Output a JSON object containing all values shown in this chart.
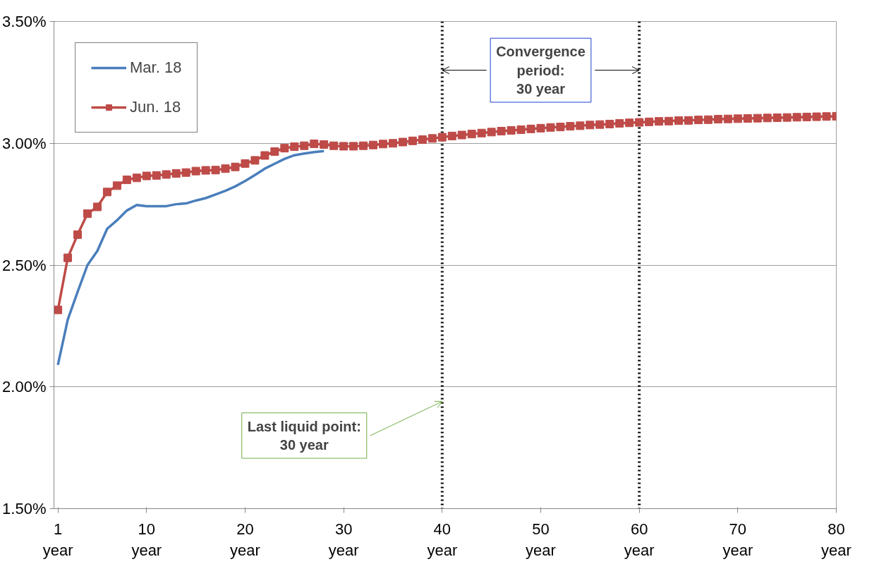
{
  "chart_data": {
    "type": "line",
    "x": [
      1,
      2,
      3,
      4,
      5,
      6,
      7,
      8,
      9,
      10,
      11,
      12,
      13,
      14,
      15,
      16,
      17,
      18,
      19,
      20,
      21,
      22,
      23,
      24,
      25,
      26,
      27,
      28,
      29,
      30,
      31,
      32,
      33,
      34,
      35,
      36,
      37,
      38,
      39,
      40,
      41,
      42,
      43,
      44,
      45,
      46,
      47,
      48,
      49,
      50,
      51,
      52,
      53,
      54,
      55,
      56,
      57,
      58,
      59,
      60,
      61,
      62,
      63,
      64,
      65,
      66,
      67,
      68,
      69,
      70,
      71,
      72,
      73,
      74,
      75,
      76,
      77,
      78,
      79,
      80
    ],
    "series": [
      {
        "name": "Mar. 18",
        "color": "#4a7ebb",
        "marker": "none",
        "values": [
          2.09,
          2.276,
          2.39,
          2.5,
          2.558,
          2.649,
          2.684,
          2.724,
          2.747,
          2.742,
          2.742,
          2.742,
          2.75,
          2.753,
          2.765,
          2.775,
          2.79,
          2.805,
          2.823,
          2.845,
          2.87,
          2.896,
          2.916,
          2.936,
          2.951,
          2.958,
          2.964,
          2.968,
          null,
          null,
          null,
          null,
          null,
          null,
          null,
          null,
          null,
          null,
          null,
          null,
          null,
          null,
          null,
          null,
          null,
          null,
          null,
          null,
          null,
          null,
          null,
          null,
          null,
          null,
          null,
          null,
          null,
          null,
          null,
          null,
          null,
          null,
          null,
          null,
          null,
          null,
          null,
          null,
          null,
          null,
          null,
          null,
          null,
          null,
          null,
          null,
          null,
          null,
          null,
          null
        ]
      },
      {
        "name": "Jun. 18",
        "color": "#be4b48",
        "marker": "square",
        "values": [
          2.316,
          2.53,
          2.625,
          2.711,
          2.739,
          2.8,
          2.826,
          2.85,
          2.858,
          2.866,
          2.868,
          2.872,
          2.876,
          2.88,
          2.886,
          2.889,
          2.89,
          2.896,
          2.903,
          2.917,
          2.93,
          2.95,
          2.966,
          2.98,
          2.986,
          2.99,
          2.998,
          2.995,
          2.99,
          2.988,
          2.988,
          2.99,
          2.993,
          2.997,
          3.0,
          3.005,
          3.01,
          3.015,
          3.02,
          3.025,
          3.03,
          3.034,
          3.038,
          3.042,
          3.046,
          3.05,
          3.053,
          3.056,
          3.059,
          3.062,
          3.065,
          3.067,
          3.07,
          3.072,
          3.075,
          3.077,
          3.079,
          3.082,
          3.084,
          3.086,
          3.088,
          3.09,
          3.091,
          3.093,
          3.094,
          3.096,
          3.097,
          3.099,
          3.1,
          3.101,
          3.102,
          3.103,
          3.104,
          3.105,
          3.106,
          3.107,
          3.108,
          3.109,
          3.11,
          3.111
        ]
      }
    ],
    "xlim": [
      0.6,
      80
    ],
    "xticks": [
      {
        "value": 1,
        "label": "1\nyear"
      },
      {
        "value": 10,
        "label": "10\nyear"
      },
      {
        "value": 20,
        "label": "20\nyear"
      },
      {
        "value": 30,
        "label": "30\nyear"
      },
      {
        "value": 40,
        "label": "40\nyear"
      },
      {
        "value": 50,
        "label": "50\nyear"
      },
      {
        "value": 60,
        "label": "60\nyear"
      },
      {
        "value": 70,
        "label": "70\nyear"
      },
      {
        "value": 80,
        "label": "80\nyear"
      }
    ],
    "ylim": [
      1.5,
      3.5
    ],
    "yticks": [
      {
        "value": 1.5,
        "label": "1.50%"
      },
      {
        "value": 2.0,
        "label": "2.00%"
      },
      {
        "value": 2.5,
        "label": "2.50%"
      },
      {
        "value": 3.0,
        "label": "3.00%"
      },
      {
        "value": 3.5,
        "label": "3.50%"
      }
    ],
    "grid": "y",
    "legend": "top left",
    "ref_lines": [
      {
        "axis": "x",
        "value": 40,
        "color": "#000000",
        "line_style": "dotted"
      },
      {
        "axis": "x",
        "value": 60,
        "color": "#000000",
        "line_style": "dotted"
      }
    ],
    "annotations": [
      {
        "text": "Convergence\nperiod:\n30 year",
        "x": 40,
        "y": 3.3
      },
      {
        "text": "Last liquid point:\n30 year",
        "x": 40,
        "y": 1.94
      }
    ]
  }
}
